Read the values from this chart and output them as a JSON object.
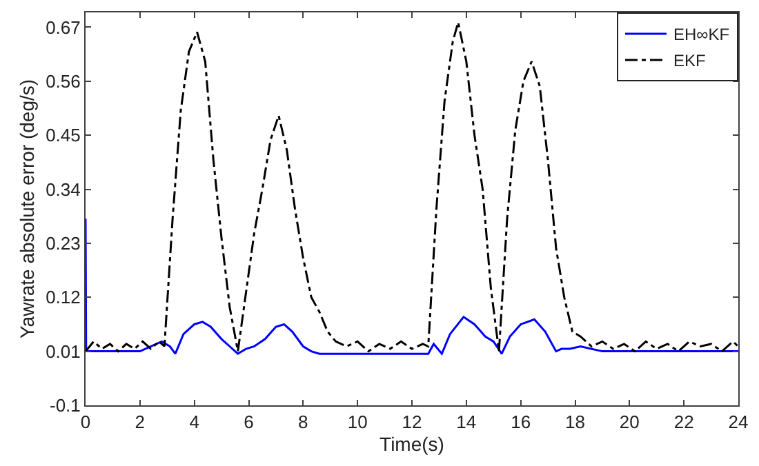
{
  "chart_data": {
    "type": "line",
    "xlabel": "Time(s)",
    "ylabel": "Yawrate absolute error (deg/s)",
    "xlim": [
      0,
      24
    ],
    "xticks": [
      0,
      2,
      4,
      6,
      8,
      10,
      12,
      14,
      16,
      18,
      20,
      22,
      24
    ],
    "ylim": [
      -0.1,
      0.7
    ],
    "yticks": [
      -0.1,
      0.01,
      0.12,
      0.23,
      0.34,
      0.45,
      0.56,
      0.67
    ],
    "legend": "top right",
    "marker": "none",
    "series": [
      {
        "name": "EH∞KF",
        "color": "#0000ff",
        "line_style": "solid",
        "x": [
          0,
          0.02,
          0.3,
          1,
          2,
          2.8,
          3.1,
          3.3,
          3.6,
          4.0,
          4.3,
          4.6,
          5.0,
          5.3,
          5.6,
          5.9,
          6.2,
          6.6,
          7.0,
          7.3,
          7.6,
          8.0,
          8.3,
          8.6,
          9.5,
          11,
          12.6,
          12.8,
          13.1,
          13.4,
          13.9,
          14.3,
          14.7,
          15.0,
          15.3,
          15.6,
          16.0,
          16.5,
          16.9,
          17.3,
          17.5,
          17.8,
          18.2,
          19,
          21,
          22.6,
          24
        ],
        "values": [
          0.28,
          0.01,
          0.01,
          0.01,
          0.01,
          0.03,
          0.02,
          0.005,
          0.045,
          0.065,
          0.07,
          0.06,
          0.035,
          0.02,
          0.005,
          0.015,
          0.02,
          0.035,
          0.06,
          0.065,
          0.05,
          0.02,
          0.01,
          0.005,
          0.005,
          0.005,
          0.005,
          0.025,
          0.005,
          0.045,
          0.08,
          0.065,
          0.04,
          0.03,
          0.005,
          0.04,
          0.065,
          0.075,
          0.05,
          0.01,
          0.015,
          0.015,
          0.02,
          0.01,
          0.01,
          0.01,
          0.01
        ]
      },
      {
        "name": "EKF",
        "color": "#000000",
        "line_style": "dashed",
        "x": [
          0,
          0.3,
          0.6,
          0.9,
          1.2,
          1.5,
          1.8,
          2.1,
          2.4,
          2.7,
          2.9,
          3.2,
          3.5,
          3.8,
          4.1,
          4.4,
          4.7,
          5.0,
          5.3,
          5.6,
          5.9,
          6.2,
          6.5,
          6.8,
          7.1,
          7.4,
          7.7,
          8.0,
          8.3,
          8.6,
          8.9,
          9.2,
          9.6,
          10.0,
          10.4,
          10.8,
          11.2,
          11.6,
          12.0,
          12.4,
          12.6,
          12.9,
          13.2,
          13.5,
          13.7,
          14.0,
          14.3,
          14.6,
          14.9,
          15.2,
          15.5,
          15.8,
          16.1,
          16.4,
          16.7,
          17.0,
          17.3,
          17.6,
          17.9,
          18.2,
          18.6,
          19.0,
          19.4,
          19.8,
          20.2,
          20.6,
          21.0,
          21.4,
          21.8,
          22.2,
          22.6,
          23.0,
          23.4,
          23.8,
          24
        ],
        "values": [
          0.01,
          0.03,
          0.015,
          0.025,
          0.01,
          0.025,
          0.015,
          0.03,
          0.015,
          0.03,
          0.02,
          0.28,
          0.5,
          0.62,
          0.66,
          0.6,
          0.4,
          0.24,
          0.1,
          0.01,
          0.13,
          0.25,
          0.34,
          0.44,
          0.49,
          0.42,
          0.3,
          0.2,
          0.12,
          0.09,
          0.05,
          0.03,
          0.02,
          0.03,
          0.01,
          0.025,
          0.015,
          0.03,
          0.015,
          0.025,
          0.02,
          0.3,
          0.52,
          0.64,
          0.68,
          0.6,
          0.45,
          0.34,
          0.14,
          0.01,
          0.28,
          0.46,
          0.56,
          0.6,
          0.55,
          0.4,
          0.22,
          0.12,
          0.05,
          0.04,
          0.02,
          0.03,
          0.015,
          0.025,
          0.01,
          0.03,
          0.015,
          0.025,
          0.01,
          0.03,
          0.02,
          0.025,
          0.01,
          0.03,
          0.02
        ]
      }
    ]
  }
}
